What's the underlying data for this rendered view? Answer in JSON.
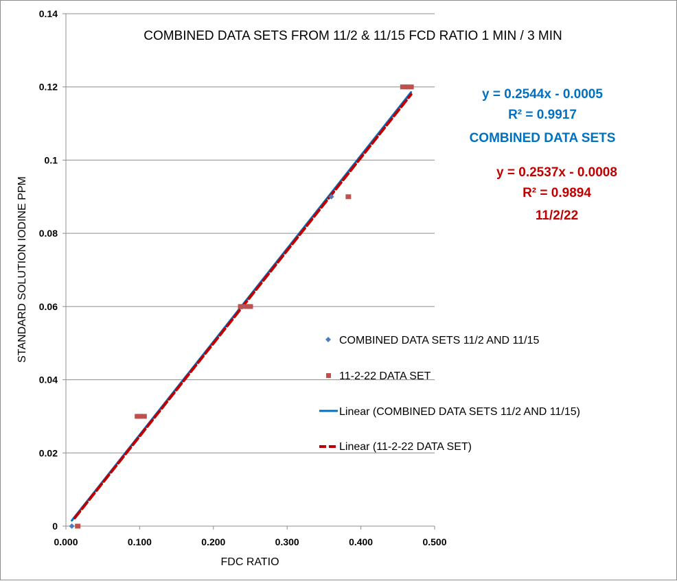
{
  "chart_data": {
    "type": "scatter",
    "title": "COMBINED DATA SETS FROM 11/2 & 11/15 FCD RATIO  1 MIN / 3 MIN",
    "xlabel": "FDC RATIO",
    "ylabel": "STANDARD SOLUTION IODINE PPM",
    "xlim": [
      0,
      0.5
    ],
    "ylim": [
      0,
      0.14
    ],
    "x_ticks": [
      "0.000",
      "0.100",
      "0.200",
      "0.300",
      "0.400",
      "0.500"
    ],
    "y_ticks": [
      "0",
      "0.02",
      "0.04",
      "0.06",
      "0.08",
      "0.1",
      "0.12",
      "0.14"
    ],
    "grid": "horizontal",
    "legend_position": "right",
    "series": [
      {
        "name": "COMBINED DATA SETS 11/2 AND 11/15",
        "kind": "markers",
        "marker": "diamond",
        "color": "#4a7ebb",
        "x": [
          0.008,
          0.103,
          0.24,
          0.36,
          0.462
        ],
        "y": [
          0,
          0.03,
          0.06,
          0.09,
          0.12
        ]
      },
      {
        "name": "11-2-22 DATA SET",
        "kind": "markers",
        "marker": "square",
        "color": "#c0504d",
        "x": [
          0.016,
          0.097,
          0.1,
          0.106,
          0.237,
          0.245,
          0.25,
          0.383,
          0.457,
          0.463,
          0.468
        ],
        "y": [
          0,
          0.03,
          0.03,
          0.03,
          0.06,
          0.06,
          0.06,
          0.09,
          0.12,
          0.12,
          0.12
        ]
      },
      {
        "name": "Linear (COMBINED DATA SETS 11/2 AND 11/15)",
        "kind": "trendline",
        "style": "solid",
        "color": "#0070c0",
        "slope": 0.2544,
        "intercept": -0.0005,
        "x_range": [
          0.008,
          0.468
        ]
      },
      {
        "name": "Linear (11-2-22 DATA SET)",
        "kind": "trendline",
        "style": "dashed",
        "color": "#c00000",
        "slope": 0.2537,
        "intercept": -0.0008,
        "x_range": [
          0.012,
          0.468
        ]
      }
    ],
    "annotations": [
      {
        "color": "#0070c0",
        "lines": [
          "y = 0.2544x - 0.0005",
          "R² = 0.9917",
          "COMBINED DATA SETS"
        ]
      },
      {
        "color": "#c00000",
        "lines": [
          "y = 0.2537x - 0.0008",
          "R² = 0.9894",
          "11/2/22"
        ]
      }
    ]
  }
}
